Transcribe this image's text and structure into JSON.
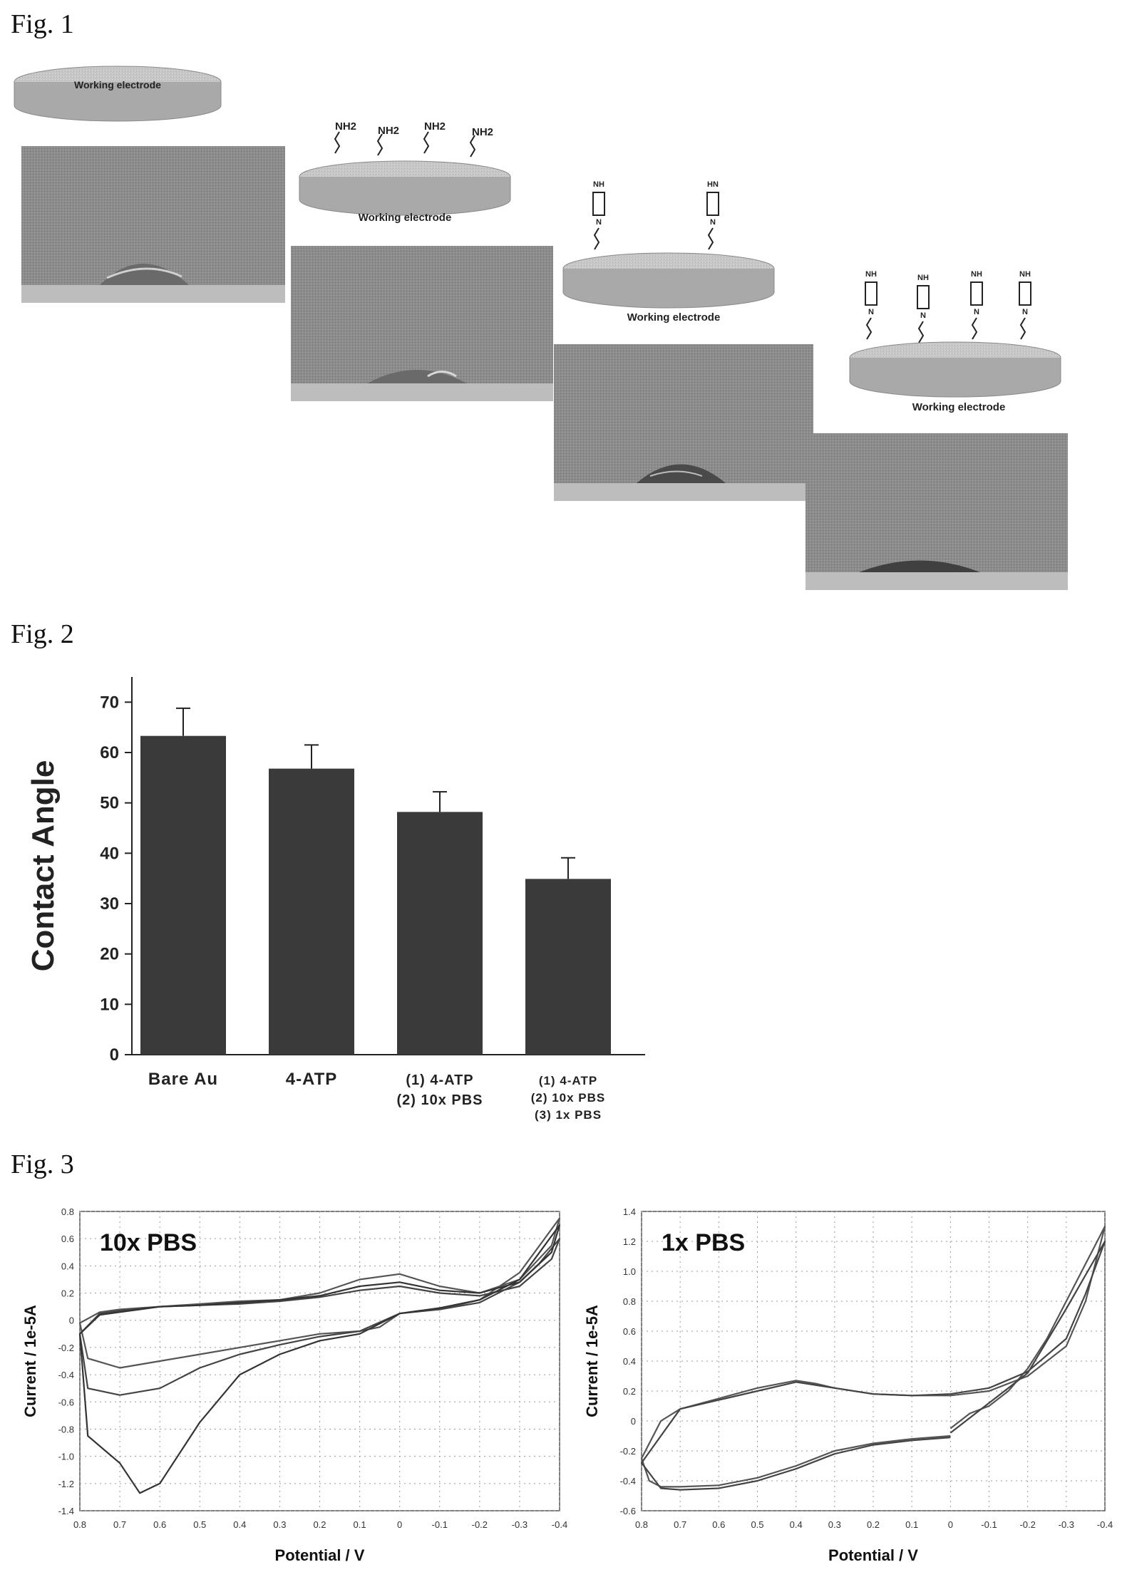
{
  "fig1": {
    "label": "Fig. 1",
    "steps": [
      {
        "electrode_label": "Working electrode",
        "groups": []
      },
      {
        "electrode_label": "Working electrode",
        "groups": [
          "NH2",
          "NH2",
          "NH2",
          "NH2"
        ]
      },
      {
        "electrode_label": "Working electrode",
        "groups": [
          "ring",
          "ring"
        ]
      },
      {
        "electrode_label": "Working electrode",
        "groups": [
          "ring",
          "ring",
          "ring",
          "ring"
        ]
      }
    ]
  },
  "fig2": {
    "label": "Fig. 2",
    "chart_data": {
      "type": "bar",
      "ylabel": "Contact Angle",
      "ylim": [
        0,
        75
      ],
      "yticks": [
        0,
        10,
        20,
        30,
        40,
        50,
        60,
        70
      ],
      "categories": [
        [
          "Bare Au"
        ],
        [
          "4-ATP"
        ],
        [
          "(1) 4-ATP",
          "(2) 10x PBS"
        ],
        [
          "(1) 4-ATP",
          "(2) 10x PBS",
          "(3) 1x PBS"
        ]
      ],
      "values": [
        63.3,
        56.8,
        48.2,
        34.9
      ],
      "errors": [
        5.5,
        4.7,
        4.0,
        4.2
      ],
      "bar_color": "#3a3a3a"
    }
  },
  "fig3": {
    "label": "Fig. 3",
    "chart_data": [
      {
        "type": "line",
        "title": "10x PBS",
        "xlabel": "Potential / V",
        "ylabel": "Current / 1e-5A",
        "xlim": [
          0.8,
          -0.4
        ],
        "ylim": [
          -1.4,
          0.8
        ],
        "xticks": [
          "0.8",
          "0.7",
          "0.6",
          "0.5",
          "0.4",
          "0.3",
          "0.2",
          "0.1",
          "0",
          "-0.1",
          "-0.2",
          "-0.3",
          "-0.4"
        ],
        "yticks": [
          "0.8",
          "0.6",
          "0.4",
          "0.2",
          "0",
          "-0.2",
          "-0.4",
          "-0.6",
          "-0.8",
          "-1.0",
          "-1.2",
          "-1.4"
        ],
        "series": [
          {
            "x": [
              0.0,
              -0.05,
              -0.1,
              -0.2,
              -0.3,
              -0.35,
              -0.4,
              -0.38,
              -0.3,
              -0.2,
              -0.1,
              0.0,
              0.1,
              0.2,
              0.3,
              0.4,
              0.5,
              0.6,
              0.7,
              0.75,
              0.8,
              0.78,
              0.7,
              0.6,
              0.5,
              0.4,
              0.3,
              0.2,
              0.1,
              0.05,
              0.0
            ],
            "y": [
              0.05,
              0.07,
              0.08,
              0.15,
              0.35,
              0.55,
              0.75,
              0.55,
              0.3,
              0.2,
              0.25,
              0.34,
              0.3,
              0.2,
              0.15,
              0.14,
              0.12,
              0.1,
              0.08,
              0.06,
              -0.02,
              -0.28,
              -0.35,
              -0.3,
              -0.25,
              -0.2,
              -0.15,
              -0.1,
              -0.08,
              -0.05,
              0.05
            ]
          },
          {
            "x": [
              0.0,
              -0.1,
              -0.2,
              -0.3,
              -0.35,
              -0.4,
              -0.38,
              -0.3,
              -0.2,
              -0.1,
              0.0,
              0.1,
              0.2,
              0.3,
              0.4,
              0.5,
              0.6,
              0.7,
              0.75,
              0.8,
              0.78,
              0.7,
              0.6,
              0.5,
              0.4,
              0.3,
              0.2,
              0.1,
              0.0
            ],
            "y": [
              0.05,
              0.08,
              0.13,
              0.28,
              0.42,
              0.6,
              0.45,
              0.25,
              0.18,
              0.2,
              0.25,
              0.22,
              0.17,
              0.14,
              0.12,
              0.11,
              0.1,
              0.07,
              0.05,
              -0.1,
              -0.5,
              -0.55,
              -0.5,
              -0.35,
              -0.25,
              -0.18,
              -0.12,
              -0.08,
              0.05
            ]
          },
          {
            "x": [
              0.0,
              -0.1,
              -0.2,
              -0.3,
              -0.35,
              -0.4,
              -0.38,
              -0.3,
              -0.2,
              -0.1,
              0.0,
              0.1,
              0.2,
              0.3,
              0.4,
              0.5,
              0.6,
              0.65,
              0.7,
              0.75,
              0.8,
              0.78,
              0.7,
              0.65,
              0.6,
              0.5,
              0.4,
              0.3,
              0.2,
              0.1,
              0.0
            ],
            "y": [
              0.05,
              0.09,
              0.15,
              0.3,
              0.5,
              0.7,
              0.5,
              0.28,
              0.2,
              0.22,
              0.28,
              0.25,
              0.18,
              0.15,
              0.13,
              0.11,
              0.1,
              0.08,
              0.06,
              0.04,
              -0.1,
              -0.85,
              -1.05,
              -1.27,
              -1.2,
              -0.75,
              -0.4,
              -0.25,
              -0.15,
              -0.1,
              0.05
            ]
          }
        ]
      },
      {
        "type": "line",
        "title": "1x PBS",
        "xlabel": "Potential / V",
        "ylabel": "Current / 1e-5A",
        "xlim": [
          0.8,
          -0.4
        ],
        "ylim": [
          -0.6,
          1.4
        ],
        "xticks": [
          "0.8",
          "0.7",
          "0.6",
          "0.5",
          "0.4",
          "0.3",
          "0.2",
          "0.1",
          "0",
          "-0.1",
          "-0.2",
          "-0.3",
          "-0.4"
        ],
        "yticks": [
          "1.4",
          "1.2",
          "1.0",
          "0.8",
          "0.6",
          "0.4",
          "0.2",
          "0",
          "-0.2",
          "-0.4",
          "-0.6"
        ],
        "series": [
          {
            "x": [
              0.0,
              -0.05,
              -0.1,
              -0.15,
              -0.2,
              -0.25,
              -0.3,
              -0.35,
              -0.4,
              -0.35,
              -0.3,
              -0.2,
              -0.1,
              0.0,
              0.1,
              0.2,
              0.3,
              0.35,
              0.4,
              0.5,
              0.6,
              0.7,
              0.75,
              0.8,
              0.78,
              0.75,
              0.7,
              0.6,
              0.5,
              0.4,
              0.3,
              0.2,
              0.1,
              0.0
            ],
            "y": [
              -0.05,
              0.05,
              0.1,
              0.2,
              0.35,
              0.55,
              0.8,
              1.05,
              1.3,
              0.8,
              0.5,
              0.3,
              0.2,
              0.17,
              0.17,
              0.18,
              0.22,
              0.25,
              0.27,
              0.22,
              0.15,
              0.08,
              0.0,
              -0.25,
              -0.4,
              -0.44,
              -0.44,
              -0.43,
              -0.38,
              -0.3,
              -0.2,
              -0.15,
              -0.12,
              -0.1
            ]
          },
          {
            "x": [
              0.0,
              -0.1,
              -0.2,
              -0.3,
              -0.4,
              -0.35,
              -0.3,
              -0.2,
              -0.1,
              0.0,
              0.1,
              0.2,
              0.3,
              0.4,
              0.5,
              0.6,
              0.7,
              0.8,
              0.75,
              0.7,
              0.6,
              0.5,
              0.4,
              0.3,
              0.2,
              0.1,
              0.0
            ],
            "y": [
              -0.08,
              0.12,
              0.32,
              0.75,
              1.2,
              0.85,
              0.55,
              0.33,
              0.22,
              0.18,
              0.17,
              0.18,
              0.22,
              0.26,
              0.2,
              0.14,
              0.08,
              -0.28,
              -0.45,
              -0.46,
              -0.45,
              -0.4,
              -0.32,
              -0.22,
              -0.16,
              -0.13,
              -0.11
            ]
          }
        ]
      }
    ]
  }
}
